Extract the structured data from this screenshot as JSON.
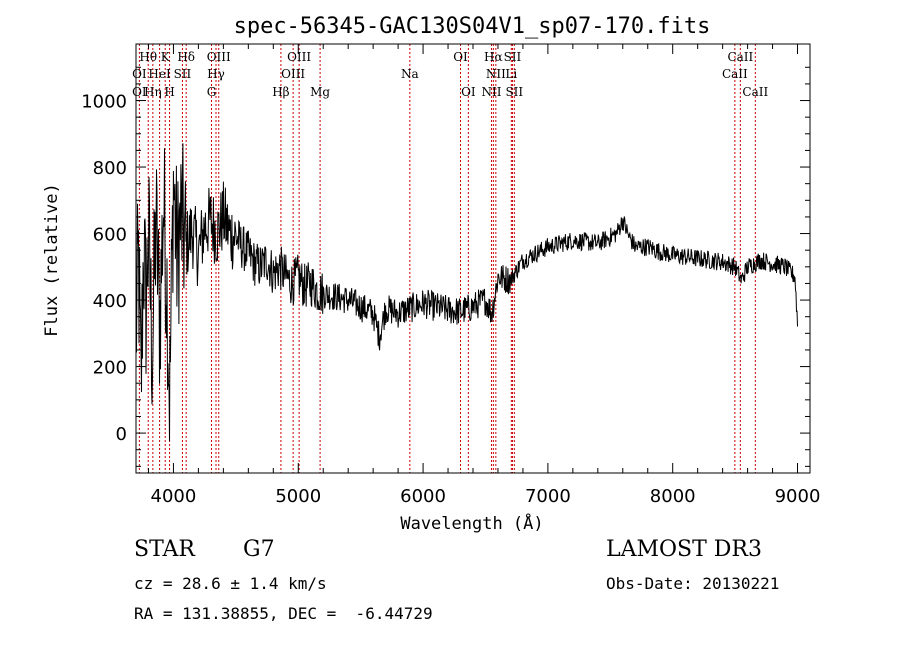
{
  "chart_data": {
    "type": "line",
    "title": "spec-56345-GAC130S04V1_sp07-170.fits",
    "xlabel": "Wavelength (Å)",
    "ylabel": "Flux (relative)",
    "xlim": [
      3700,
      9100
    ],
    "ylim": [
      -120,
      1170
    ],
    "xticks": [
      4000,
      5000,
      6000,
      7000,
      8000,
      9000
    ],
    "yticks": [
      0,
      200,
      400,
      600,
      800,
      1000
    ],
    "series": [
      {
        "name": "spectrum",
        "color": "#000000",
        "x": [
          3700,
          3720,
          3740,
          3760,
          3780,
          3800,
          3830,
          3860,
          3890,
          3920,
          3950,
          3970,
          4000,
          4030,
          4060,
          4100,
          4150,
          4200,
          4250,
          4300,
          4350,
          4400,
          4450,
          4500,
          4550,
          4600,
          4650,
          4700,
          4750,
          4800,
          4850,
          4900,
          4950,
          5000,
          5050,
          5100,
          5150,
          5200,
          5300,
          5400,
          5500,
          5600,
          5650,
          5700,
          5800,
          5900,
          6000,
          6100,
          6200,
          6300,
          6400,
          6500,
          6550,
          6600,
          6700,
          6800,
          6900,
          7000,
          7100,
          7200,
          7300,
          7400,
          7500,
          7550,
          7600,
          7650,
          7700,
          7800,
          7900,
          8000,
          8100,
          8200,
          8300,
          8400,
          8500,
          8550,
          8600,
          8700,
          8800,
          8900,
          8980,
          9000
        ],
        "values": [
          300,
          520,
          120,
          560,
          380,
          600,
          240,
          640,
          330,
          700,
          420,
          90,
          760,
          520,
          650,
          560,
          610,
          540,
          620,
          640,
          600,
          650,
          600,
          590,
          560,
          540,
          510,
          500,
          520,
          480,
          500,
          470,
          450,
          470,
          440,
          450,
          430,
          420,
          410,
          400,
          380,
          360,
          290,
          375,
          360,
          375,
          390,
          380,
          370,
          365,
          380,
          400,
          360,
          470,
          460,
          520,
          540,
          560,
          570,
          580,
          575,
          570,
          590,
          600,
          640,
          590,
          560,
          560,
          545,
          535,
          530,
          525,
          520,
          515,
          500,
          460,
          500,
          520,
          510,
          500,
          470,
          330
        ]
      }
    ],
    "lines": [
      {
        "name": "OI 3727",
        "x": 3727
      },
      {
        "name": "Hθ",
        "x": 3798
      },
      {
        "name": "Hη",
        "x": 3835
      },
      {
        "name": "HeI",
        "x": 3889
      },
      {
        "name": "K",
        "x": 3934
      },
      {
        "name": "H",
        "x": 3969
      },
      {
        "name": "SII",
        "x": 4072
      },
      {
        "name": "Hδ",
        "x": 4102
      },
      {
        "name": "G",
        "x": 4305
      },
      {
        "name": "Hγ",
        "x": 4341
      },
      {
        "name": "OIII 4363",
        "x": 4363
      },
      {
        "name": "Hβ",
        "x": 4861
      },
      {
        "name": "OIII 4959",
        "x": 4959
      },
      {
        "name": "OIII 5007",
        "x": 5007
      },
      {
        "name": "Mg",
        "x": 5175
      },
      {
        "name": "Na",
        "x": 5894
      },
      {
        "name": "OI 6300",
        "x": 6300
      },
      {
        "name": "OI 6363",
        "x": 6363
      },
      {
        "name": "NII 6548",
        "x": 6548
      },
      {
        "name": "Hα",
        "x": 6563
      },
      {
        "name": "NII 6583",
        "x": 6583
      },
      {
        "name": "Li",
        "x": 6707
      },
      {
        "name": "SII 6716",
        "x": 6716
      },
      {
        "name": "SII 6731",
        "x": 6731
      },
      {
        "name": "CaII 8498",
        "x": 8498
      },
      {
        "name": "CaII 8542",
        "x": 8542
      },
      {
        "name": "CaII 8662",
        "x": 8662
      }
    ],
    "line_labels": [
      {
        "text": "OI",
        "x": 3727,
        "row": 2
      },
      {
        "text": "OI",
        "x": 3727,
        "row": 3
      },
      {
        "text": "Hθ",
        "x": 3798,
        "row": 1
      },
      {
        "text": "Hη",
        "x": 3835,
        "row": 3
      },
      {
        "text": "HeI",
        "x": 3889,
        "row": 2
      },
      {
        "text": "K",
        "x": 3934,
        "row": 1
      },
      {
        "text": "H",
        "x": 3969,
        "row": 3
      },
      {
        "text": "SII",
        "x": 4072,
        "row": 2
      },
      {
        "text": "Hδ",
        "x": 4102,
        "row": 1
      },
      {
        "text": "OIII",
        "x": 4363,
        "row": 1
      },
      {
        "text": "Hγ",
        "x": 4341,
        "row": 2
      },
      {
        "text": "G",
        "x": 4305,
        "row": 3
      },
      {
        "text": "OIII",
        "x": 5007,
        "row": 1
      },
      {
        "text": "OIII",
        "x": 4959,
        "row": 2
      },
      {
        "text": "Hβ",
        "x": 4861,
        "row": 3
      },
      {
        "text": "Mg",
        "x": 5175,
        "row": 3
      },
      {
        "text": "Na",
        "x": 5894,
        "row": 2
      },
      {
        "text": "OI",
        "x": 6300,
        "row": 1
      },
      {
        "text": "OI",
        "x": 6363,
        "row": 3
      },
      {
        "text": "Hα",
        "x": 6563,
        "row": 1
      },
      {
        "text": "SII",
        "x": 6716,
        "row": 1
      },
      {
        "text": "NII",
        "x": 6583,
        "row": 2
      },
      {
        "text": "Li",
        "x": 6707,
        "row": 2
      },
      {
        "text": "NII",
        "x": 6548,
        "row": 3
      },
      {
        "text": "SII",
        "x": 6731,
        "row": 3
      },
      {
        "text": "CaII",
        "x": 8542,
        "row": 1
      },
      {
        "text": "CaII",
        "x": 8498,
        "row": 2
      },
      {
        "text": "CaII",
        "x": 8662,
        "row": 3
      }
    ],
    "line_color": "#cc0000"
  },
  "info": {
    "class": "STAR",
    "subclass": "G7",
    "cz": "cz = 28.6 ± 1.4 km/s",
    "coords": "RA = 131.38855, DEC =  -6.44729",
    "survey": "LAMOST DR3",
    "obs_date": "Obs-Date: 20130221"
  }
}
